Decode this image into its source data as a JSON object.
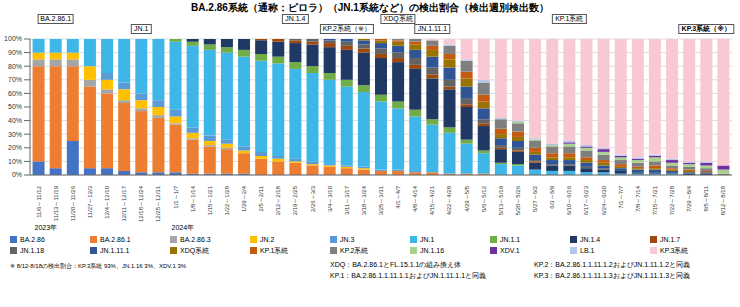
{
  "chart_data": {
    "type": "bar",
    "title": "BA.2.86系統（通称：ピロラ）（JN.1系統など）の検出割合（検出週別検出数）",
    "categories": [
      "11/6～11/12",
      "11/13～11/19",
      "11/20～11/26",
      "11/27～12/3",
      "12/4～12/10",
      "12/11～12/17",
      "12/18～12/24",
      "12/25～12/31",
      "1/1～1/7",
      "1/8～1/14",
      "1/15～1/21",
      "1/22～1/28",
      "1/29～2/4",
      "2/5～2/11",
      "2/12～2/18",
      "2/19～2/25",
      "2/26～3/3",
      "3/4～3/10",
      "3/11～3/17",
      "3/18～3/24",
      "3/25～3/31",
      "4/1～4/7",
      "4/8～4/14",
      "4/15～4/21",
      "4/22～4/28",
      "4/29～5/5",
      "5/6～5/12",
      "5/13～5/19",
      "5/20～5/26",
      "5/27～6/2",
      "6/3～6/9",
      "6/10～6/16",
      "6/17～6/23",
      "6/24～6/30",
      "7/1～7/7",
      "7/8～7/14",
      "7/15～7/21",
      "7/22～7/28",
      "7/29～8/4",
      "8/5～8/11",
      "8/12～8/18"
    ],
    "series": [
      {
        "name": "BA.2.86",
        "color": "#4472c4",
        "values": [
          10,
          5,
          25,
          5,
          5,
          3,
          2,
          2,
          2,
          1,
          1,
          1,
          1,
          0,
          0,
          0,
          0,
          0,
          0,
          0,
          0,
          0,
          0,
          0,
          0,
          0,
          0,
          0,
          0,
          0,
          0,
          0,
          0,
          0,
          0,
          0,
          0,
          0,
          0,
          0,
          0
        ]
      },
      {
        "name": "BA.2.86.1",
        "color": "#ed7d31",
        "values": [
          70,
          75,
          55,
          60,
          55,
          50,
          45,
          40,
          35,
          25,
          20,
          18,
          15,
          12,
          10,
          9,
          7,
          6,
          5,
          4,
          3,
          3,
          2,
          2,
          1,
          1,
          1,
          0,
          0,
          0,
          0,
          0,
          0,
          0,
          0,
          0,
          0,
          0,
          0,
          0,
          0
        ]
      },
      {
        "name": "BA.2.86.3",
        "color": "#a5a5a5",
        "values": [
          5,
          5,
          5,
          5,
          3,
          2,
          2,
          2,
          1,
          1,
          1,
          1,
          0,
          0,
          0,
          0,
          0,
          0,
          0,
          0,
          0,
          0,
          0,
          0,
          0,
          0,
          0,
          0,
          0,
          0,
          0,
          0,
          0,
          0,
          0,
          0,
          0,
          0,
          0,
          0,
          0
        ]
      },
      {
        "name": "JN.2",
        "color": "#ffc000",
        "values": [
          5,
          5,
          5,
          10,
          7,
          8,
          6,
          6,
          5,
          4,
          3,
          3,
          2,
          2,
          2,
          1,
          1,
          1,
          1,
          1,
          0,
          0,
          0,
          0,
          0,
          0,
          0,
          0,
          0,
          0,
          0,
          0,
          0,
          0,
          0,
          0,
          0,
          0,
          0,
          0,
          0
        ]
      },
      {
        "name": "JN.3",
        "color": "#5b9bd5",
        "values": [
          0,
          0,
          0,
          0,
          5,
          5,
          5,
          5,
          5,
          4,
          4,
          3,
          3,
          3,
          2,
          2,
          2,
          1,
          1,
          1,
          1,
          1,
          1,
          0,
          0,
          0,
          0,
          0,
          0,
          0,
          0,
          0,
          0,
          0,
          0,
          0,
          0,
          0,
          0,
          0,
          0
        ]
      },
      {
        "name": "JN.1",
        "color": "#3fb6e8",
        "values": [
          10,
          10,
          10,
          20,
          25,
          32,
          40,
          45,
          50,
          60,
          63,
          64,
          66,
          67,
          68,
          66,
          65,
          62,
          58,
          55,
          50,
          45,
          40,
          35,
          30,
          22,
          15,
          8,
          7,
          4,
          3,
          3,
          2,
          2,
          1,
          1,
          1,
          1,
          0,
          0,
          0
        ]
      },
      {
        "name": "JN.1.1",
        "color": "#70ad47",
        "values": [
          0,
          0,
          0,
          0,
          0,
          0,
          0,
          0,
          2,
          3,
          4,
          4,
          5,
          5,
          5,
          5,
          5,
          5,
          5,
          5,
          5,
          5,
          5,
          4,
          4,
          3,
          2,
          1,
          1,
          0,
          0,
          0,
          0,
          0,
          0,
          0,
          0,
          0,
          0,
          0,
          0
        ]
      },
      {
        "name": "JN.1.4",
        "color": "#1f3864",
        "values": [
          0,
          0,
          0,
          0,
          0,
          0,
          0,
          0,
          0,
          2,
          4,
          6,
          8,
          10,
          11,
          14,
          16,
          19,
          22,
          24,
          27,
          29,
          30,
          30,
          28,
          24,
          18,
          10,
          9,
          5,
          4,
          4,
          3,
          2,
          2,
          1,
          1,
          1,
          1,
          1,
          0
        ]
      },
      {
        "name": "JN.1.7",
        "color": "#9e480e",
        "values": [
          0,
          0,
          0,
          0,
          0,
          0,
          0,
          0,
          0,
          0,
          0,
          0,
          0,
          1,
          2,
          2,
          2,
          3,
          3,
          3,
          3,
          3,
          3,
          3,
          2,
          2,
          2,
          1,
          1,
          1,
          0,
          0,
          0,
          0,
          0,
          0,
          0,
          0,
          0,
          0,
          0
        ]
      },
      {
        "name": "JN.1.18",
        "color": "#636363",
        "values": [
          0,
          0,
          0,
          0,
          0,
          0,
          0,
          0,
          0,
          0,
          0,
          0,
          0,
          0,
          0,
          1,
          2,
          2,
          3,
          3,
          4,
          4,
          5,
          5,
          5,
          4,
          3,
          2,
          2,
          1,
          1,
          1,
          1,
          1,
          0,
          0,
          0,
          0,
          0,
          0,
          0
        ]
      },
      {
        "name": "JN.1.11.1",
        "color": "#2f5597",
        "values": [
          0,
          0,
          0,
          0,
          0,
          0,
          0,
          0,
          0,
          0,
          0,
          0,
          0,
          0,
          0,
          0,
          0,
          1,
          2,
          3,
          4,
          5,
          6,
          8,
          9,
          9,
          8,
          5,
          5,
          4,
          3,
          3,
          3,
          2,
          2,
          2,
          2,
          1,
          1,
          1,
          0
        ]
      },
      {
        "name": "XDQ系統",
        "color": "#997300",
        "values": [
          0,
          0,
          0,
          0,
          0,
          0,
          0,
          0,
          0,
          0,
          0,
          0,
          0,
          0,
          0,
          0,
          0,
          0,
          0,
          1,
          2,
          3,
          4,
          5,
          6,
          6,
          5,
          3,
          3,
          2,
          2,
          2,
          2,
          2,
          1,
          1,
          1,
          1,
          1,
          0,
          0
        ]
      },
      {
        "name": "KP.1系統",
        "color": "#c55a11",
        "values": [
          0,
          0,
          0,
          0,
          0,
          0,
          0,
          0,
          0,
          0,
          0,
          0,
          0,
          0,
          0,
          0,
          0,
          0,
          0,
          0,
          1,
          1,
          2,
          3,
          4,
          5,
          5,
          4,
          4,
          3,
          3,
          3,
          2,
          2,
          2,
          1,
          2,
          1,
          1,
          1,
          0
        ]
      },
      {
        "name": "KP.2系統",
        "color": "#7f7f7f",
        "values": [
          0,
          0,
          0,
          0,
          0,
          0,
          0,
          0,
          0,
          0,
          0,
          0,
          0,
          0,
          0,
          0,
          0,
          0,
          0,
          0,
          0,
          1,
          2,
          4,
          6,
          8,
          9,
          7,
          6,
          5,
          5,
          5,
          5,
          4,
          3,
          3,
          3,
          2,
          2,
          2,
          1
        ]
      },
      {
        "name": "JN.1.16",
        "color": "#a9d18e",
        "values": [
          0,
          0,
          0,
          0,
          0,
          0,
          0,
          0,
          0,
          0,
          0,
          0,
          0,
          0,
          0,
          0,
          0,
          0,
          0,
          0,
          0,
          0,
          0,
          0,
          0,
          0,
          0,
          0,
          1,
          1,
          1,
          2,
          2,
          2,
          2,
          2,
          3,
          2,
          2,
          2,
          3
        ]
      },
      {
        "name": "XDV.1",
        "color": "#7030a0",
        "values": [
          0,
          0,
          0,
          0,
          0,
          0,
          0,
          0,
          0,
          0,
          0,
          0,
          0,
          0,
          0,
          0,
          0,
          0,
          0,
          0,
          0,
          0,
          0,
          0,
          0,
          0,
          0,
          0,
          0,
          0,
          0,
          1,
          1,
          2,
          1,
          1,
          1,
          2,
          1,
          2,
          3
        ]
      },
      {
        "name": "LB.1",
        "color": "#b4c7e7",
        "values": [
          0,
          0,
          0,
          0,
          0,
          0,
          0,
          0,
          0,
          0,
          0,
          0,
          0,
          0,
          0,
          0,
          0,
          0,
          0,
          0,
          0,
          0,
          0,
          0,
          1,
          1,
          2,
          1,
          1,
          1,
          1,
          1,
          1,
          1,
          1,
          1,
          1,
          1,
          1,
          1,
          0
        ]
      },
      {
        "name": "KP.3系統",
        "color": "#f8c9d4",
        "values": [
          0,
          0,
          0,
          0,
          0,
          0,
          0,
          0,
          0,
          0,
          0,
          0,
          0,
          0,
          0,
          0,
          0,
          0,
          0,
          0,
          0,
          0,
          0,
          1,
          4,
          15,
          30,
          58,
          60,
          73,
          77,
          75,
          78,
          80,
          85,
          87,
          85,
          88,
          90,
          90,
          93
        ]
      }
    ],
    "ylim": [
      0,
      100
    ],
    "yticks": [
      {
        "value": 0,
        "label": "0%"
      },
      {
        "value": 10,
        "label": "10%"
      },
      {
        "value": 20,
        "label": "20%"
      },
      {
        "value": 30,
        "label": "30%"
      },
      {
        "value": 40,
        "label": "40%"
      },
      {
        "value": 50,
        "label": "50%"
      },
      {
        "value": 60,
        "label": "60%"
      },
      {
        "value": 70,
        "label": "70%"
      },
      {
        "value": 80,
        "label": "80%"
      },
      {
        "value": 90,
        "label": "90%"
      },
      {
        "value": 100,
        "label": "100%"
      }
    ],
    "stacked": true,
    "grid": true,
    "legend": "bottom",
    "annotations": [
      {
        "text": "BA.2.86.1",
        "category": "11/13～11/19"
      },
      {
        "text": "JN.1",
        "category": "12/18～12/24"
      },
      {
        "text": "JN.1.4",
        "category": "2/19～2/25"
      },
      {
        "text": "KP.2系統（※）",
        "category": "3/11～3/17"
      },
      {
        "text": "XDQ系統",
        "category": "4/1～4/7"
      },
      {
        "text": "JN.1.11.1",
        "category": "4/15～4/21"
      },
      {
        "text": "KP.1系統",
        "category": "6/10～6/16"
      },
      {
        "text": "KP.3系統（※）",
        "category": "8/5～8/11"
      }
    ],
    "year_labels": [
      {
        "text": "2023年",
        "category": "11/6～11/12"
      },
      {
        "text": "2024年",
        "category": "1/1～1/7"
      }
    ],
    "footnotes": [
      "XDQ：BA.2.86.1とFL.15.1.1の組み換え体",
      "KP.2：BA.2.86.1.1.11.1.2およびJN.1.11.1.2と同義",
      "KP.1：BA.2.86.1.1.11.1.1およびJN.1.11.1.1と同義",
      "KP.3：BA.2.86.1.1.11.1.3およびJN.1.11.1.3と同義"
    ],
    "note": "※ 8/12-8/18の検出割合：KP.3系統 93%、JN.1.16 3%、XDV.1 3%"
  }
}
